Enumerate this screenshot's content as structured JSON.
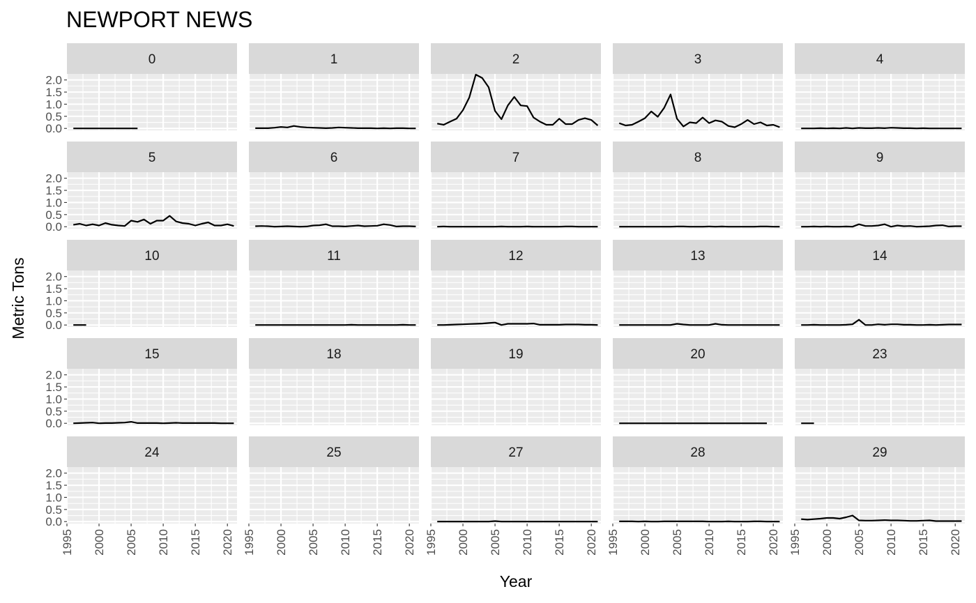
{
  "chart_data": {
    "type": "line",
    "title": "NEWPORT NEWS",
    "xlabel": "Year",
    "ylabel": "Metric Tons",
    "xlim": [
      1995,
      2021.5
    ],
    "ylim": [
      -0.08,
      2.25
    ],
    "x_ticks": [
      1995,
      2000,
      2005,
      2010,
      2015,
      2020
    ],
    "y_ticks": [
      0.0,
      0.5,
      1.0,
      1.5,
      2.0
    ],
    "y_tick_labels": [
      "0.0",
      "0.5",
      "1.0",
      "1.5",
      "2.0"
    ],
    "facet_columns": 5,
    "line_color": "#000000",
    "panel_background": "#ebebeb",
    "strip_background": "#d9d9d9",
    "grid": true,
    "panels": [
      {
        "label": "0",
        "x": [
          1996,
          1997,
          1998,
          1999,
          2000,
          2001,
          2002,
          2003,
          2004,
          2005,
          2006
        ],
        "y": [
          0,
          0,
          0,
          0,
          0,
          0,
          0,
          0,
          0,
          0,
          0
        ]
      },
      {
        "label": "1",
        "x": [
          1996,
          1997,
          1998,
          1999,
          2000,
          2001,
          2002,
          2003,
          2004,
          2005,
          2006,
          2007,
          2008,
          2009,
          2010,
          2011,
          2012,
          2013,
          2014,
          2015,
          2016,
          2017,
          2018,
          2019,
          2020,
          2021
        ],
        "y": [
          0.01,
          0.01,
          0.01,
          0.03,
          0.06,
          0.04,
          0.1,
          0.06,
          0.04,
          0.03,
          0.02,
          0.01,
          0.02,
          0.04,
          0.03,
          0.02,
          0.01,
          0.01,
          0.01,
          0.0,
          0.01,
          0.0,
          0.01,
          0.01,
          0.0,
          0.0
        ]
      },
      {
        "label": "2",
        "x": [
          1996,
          1997,
          1998,
          1999,
          2000,
          2001,
          2002,
          2003,
          2004,
          2005,
          2006,
          2007,
          2008,
          2009,
          2010,
          2011,
          2012,
          2013,
          2014,
          2015,
          2016,
          2017,
          2018,
          2019,
          2020,
          2021
        ],
        "y": [
          0.2,
          0.15,
          0.28,
          0.4,
          0.75,
          1.28,
          2.22,
          2.08,
          1.7,
          0.72,
          0.38,
          0.95,
          1.3,
          0.95,
          0.92,
          0.45,
          0.28,
          0.15,
          0.15,
          0.4,
          0.18,
          0.18,
          0.35,
          0.42,
          0.35,
          0.12
        ]
      },
      {
        "label": "3",
        "x": [
          1996,
          1997,
          1998,
          1999,
          2000,
          2001,
          2002,
          2003,
          2004,
          2005,
          2006,
          2007,
          2008,
          2009,
          2010,
          2011,
          2012,
          2013,
          2014,
          2015,
          2016,
          2017,
          2018,
          2019,
          2020,
          2021
        ],
        "y": [
          0.22,
          0.12,
          0.15,
          0.28,
          0.42,
          0.7,
          0.48,
          0.85,
          1.4,
          0.4,
          0.08,
          0.25,
          0.22,
          0.45,
          0.22,
          0.33,
          0.28,
          0.1,
          0.05,
          0.18,
          0.35,
          0.18,
          0.25,
          0.12,
          0.15,
          0.05
        ]
      },
      {
        "label": "4",
        "x": [
          1996,
          1997,
          1998,
          1999,
          2000,
          2001,
          2002,
          2003,
          2004,
          2005,
          2006,
          2007,
          2008,
          2009,
          2010,
          2011,
          2012,
          2013,
          2014,
          2015,
          2016,
          2017,
          2018,
          2019,
          2020,
          2021
        ],
        "y": [
          0.0,
          0.0,
          0.0,
          0.01,
          0.0,
          0.01,
          0.0,
          0.02,
          0.0,
          0.02,
          0.01,
          0.01,
          0.02,
          0.01,
          0.03,
          0.02,
          0.01,
          0.01,
          0.0,
          0.01,
          0.0,
          0.0,
          0.0,
          0.0,
          0.0,
          0.0
        ]
      },
      {
        "label": "5",
        "x": [
          1996,
          1997,
          1998,
          1999,
          2000,
          2001,
          2002,
          2003,
          2004,
          2005,
          2006,
          2007,
          2008,
          2009,
          2010,
          2011,
          2012,
          2013,
          2014,
          2015,
          2016,
          2017,
          2018,
          2019,
          2020,
          2021
        ],
        "y": [
          0.08,
          0.12,
          0.05,
          0.1,
          0.05,
          0.15,
          0.08,
          0.05,
          0.03,
          0.25,
          0.2,
          0.3,
          0.12,
          0.25,
          0.25,
          0.45,
          0.22,
          0.15,
          0.12,
          0.05,
          0.12,
          0.18,
          0.05,
          0.05,
          0.1,
          0.03
        ]
      },
      {
        "label": "6",
        "x": [
          1996,
          1997,
          1998,
          1999,
          2000,
          2001,
          2002,
          2003,
          2004,
          2005,
          2006,
          2007,
          2008,
          2009,
          2010,
          2011,
          2012,
          2013,
          2014,
          2015,
          2016,
          2017,
          2018,
          2019,
          2020,
          2021
        ],
        "y": [
          0.02,
          0.03,
          0.02,
          0.0,
          0.01,
          0.02,
          0.01,
          0.0,
          0.01,
          0.05,
          0.06,
          0.1,
          0.02,
          0.02,
          0.01,
          0.03,
          0.05,
          0.02,
          0.03,
          0.04,
          0.1,
          0.07,
          0.01,
          0.02,
          0.02,
          0.01
        ]
      },
      {
        "label": "7",
        "x": [
          1996,
          1997,
          1998,
          1999,
          2000,
          2001,
          2002,
          2003,
          2004,
          2005,
          2006,
          2007,
          2008,
          2009,
          2010,
          2011,
          2012,
          2013,
          2014,
          2015,
          2016,
          2017,
          2018,
          2019,
          2020,
          2021
        ],
        "y": [
          0.0,
          0.01,
          0.0,
          0.0,
          0.0,
          0.0,
          0.0,
          0.0,
          0.0,
          0.0,
          0.01,
          0.0,
          0.0,
          0.0,
          0.01,
          0.0,
          0.0,
          0.0,
          0.0,
          0.0,
          0.01,
          0.01,
          0.0,
          0.0,
          0.0,
          0.0
        ]
      },
      {
        "label": "8",
        "x": [
          1996,
          1997,
          1998,
          1999,
          2000,
          2001,
          2002,
          2003,
          2004,
          2005,
          2006,
          2007,
          2008,
          2009,
          2010,
          2011,
          2012,
          2013,
          2014,
          2015,
          2016,
          2017,
          2018,
          2019,
          2020,
          2021
        ],
        "y": [
          0.0,
          0.0,
          0.0,
          0.0,
          0.0,
          0.0,
          0.0,
          0.0,
          0.0,
          0.01,
          0.01,
          0.0,
          0.0,
          0.0,
          0.01,
          0.0,
          0.01,
          0.0,
          0.0,
          0.0,
          0.0,
          0.0,
          0.01,
          0.01,
          0.0,
          0.0
        ]
      },
      {
        "label": "9",
        "x": [
          1996,
          1997,
          1998,
          1999,
          2000,
          2001,
          2002,
          2003,
          2004,
          2005,
          2006,
          2007,
          2008,
          2009,
          2010,
          2011,
          2012,
          2013,
          2014,
          2015,
          2016,
          2017,
          2018,
          2019,
          2020,
          2021
        ],
        "y": [
          0.0,
          0.0,
          0.01,
          0.0,
          0.01,
          0.0,
          0.0,
          0.01,
          0.0,
          0.1,
          0.03,
          0.03,
          0.05,
          0.1,
          0.0,
          0.05,
          0.02,
          0.03,
          0.0,
          0.01,
          0.02,
          0.05,
          0.06,
          0.01,
          0.02,
          0.02
        ]
      },
      {
        "label": "10",
        "x": [
          1996,
          1997,
          1998
        ],
        "y": [
          0,
          0,
          0
        ]
      },
      {
        "label": "11",
        "x": [
          1996,
          1997,
          1998,
          1999,
          2000,
          2001,
          2002,
          2003,
          2004,
          2005,
          2006,
          2007,
          2008,
          2009,
          2010,
          2011,
          2012,
          2013,
          2014,
          2015,
          2016,
          2017,
          2018,
          2019,
          2020,
          2021
        ],
        "y": [
          0.0,
          0.0,
          0.0,
          0.0,
          0.0,
          0.0,
          0.0,
          0.0,
          0.0,
          0.0,
          0.0,
          0.0,
          0.0,
          0.0,
          0.0,
          0.01,
          0.0,
          0.0,
          0.0,
          0.0,
          0.0,
          0.0,
          0.0,
          0.01,
          0.0,
          0.0
        ]
      },
      {
        "label": "12",
        "x": [
          1996,
          1997,
          1998,
          1999,
          2000,
          2001,
          2002,
          2003,
          2004,
          2005,
          2006,
          2007,
          2008,
          2009,
          2010,
          2011,
          2012,
          2013,
          2014,
          2015,
          2016,
          2017,
          2018,
          2019,
          2020,
          2021
        ],
        "y": [
          0.0,
          0.0,
          0.01,
          0.02,
          0.03,
          0.04,
          0.05,
          0.06,
          0.08,
          0.1,
          0.0,
          0.05,
          0.05,
          0.05,
          0.05,
          0.06,
          0.01,
          0.01,
          0.01,
          0.01,
          0.02,
          0.02,
          0.02,
          0.01,
          0.01,
          0.0
        ]
      },
      {
        "label": "13",
        "x": [
          1996,
          1997,
          1998,
          1999,
          2000,
          2001,
          2002,
          2003,
          2004,
          2005,
          2006,
          2007,
          2008,
          2009,
          2010,
          2011,
          2012,
          2013,
          2014,
          2015,
          2016,
          2017,
          2018,
          2019,
          2020,
          2021
        ],
        "y": [
          0.0,
          0.0,
          0.0,
          0.0,
          0.0,
          0.0,
          0.0,
          0.0,
          0.0,
          0.05,
          0.02,
          0.0,
          0.0,
          0.0,
          0.0,
          0.05,
          0.01,
          0.0,
          0.0,
          0.0,
          0.0,
          0.0,
          0.0,
          0.0,
          0.0,
          0.0
        ]
      },
      {
        "label": "14",
        "x": [
          1996,
          1997,
          1998,
          1999,
          2000,
          2001,
          2002,
          2003,
          2004,
          2005,
          2006,
          2007,
          2008,
          2009,
          2010,
          2011,
          2012,
          2013,
          2014,
          2015,
          2016,
          2017,
          2018,
          2019,
          2020,
          2021
        ],
        "y": [
          0.0,
          0.0,
          0.01,
          0.0,
          0.0,
          0.0,
          0.0,
          0.01,
          0.03,
          0.22,
          0.0,
          0.0,
          0.03,
          0.01,
          0.03,
          0.03,
          0.01,
          0.01,
          0.0,
          0.0,
          0.01,
          0.0,
          0.01,
          0.02,
          0.02,
          0.02
        ]
      },
      {
        "label": "15",
        "x": [
          1996,
          1997,
          1998,
          1999,
          2000,
          2001,
          2002,
          2003,
          2004,
          2005,
          2006,
          2007,
          2008,
          2009,
          2010,
          2011,
          2012,
          2013,
          2014,
          2015,
          2016,
          2017,
          2018,
          2019,
          2020,
          2021
        ],
        "y": [
          0.0,
          0.01,
          0.02,
          0.03,
          0.0,
          0.01,
          0.01,
          0.02,
          0.03,
          0.06,
          0.01,
          0.01,
          0.01,
          0.01,
          0.0,
          0.01,
          0.02,
          0.01,
          0.01,
          0.01,
          0.01,
          0.01,
          0.01,
          0.0,
          0.0,
          0.0
        ]
      },
      {
        "label": "18",
        "x": [],
        "y": []
      },
      {
        "label": "19",
        "x": [],
        "y": []
      },
      {
        "label": "20",
        "x": [
          1996,
          1997,
          1998,
          1999,
          2000,
          2001,
          2002,
          2003,
          2004,
          2005,
          2006,
          2007,
          2008,
          2009,
          2010,
          2011,
          2012,
          2013,
          2014,
          2015,
          2016,
          2017,
          2018,
          2019
        ],
        "y": [
          0,
          0,
          0,
          0,
          0,
          0,
          0,
          0,
          0,
          0,
          0,
          0,
          0,
          0,
          0,
          0,
          0,
          0,
          0,
          0,
          0,
          0,
          0,
          0
        ]
      },
      {
        "label": "23",
        "x": [
          1996,
          1997,
          1998
        ],
        "y": [
          0,
          0,
          0
        ]
      },
      {
        "label": "24",
        "x": [],
        "y": []
      },
      {
        "label": "25",
        "x": [],
        "y": []
      },
      {
        "label": "27",
        "x": [
          1996,
          1997,
          1998,
          1999,
          2000,
          2001,
          2002,
          2003,
          2004,
          2005,
          2006,
          2007,
          2008,
          2009,
          2010,
          2011,
          2012,
          2013,
          2014,
          2015,
          2016,
          2017,
          2018,
          2019,
          2020,
          2021
        ],
        "y": [
          0.0,
          0.0,
          0.0,
          0.0,
          0.0,
          0.0,
          0.0,
          0.0,
          0.0,
          0.02,
          0.0,
          0.0,
          0.0,
          0.0,
          0.0,
          0.0,
          0.0,
          0.0,
          0.0,
          0.0,
          0.0,
          0.0,
          0.0,
          0.0,
          0.0,
          0.0
        ]
      },
      {
        "label": "28",
        "x": [
          1996,
          1997,
          1998,
          1999,
          2000,
          2001,
          2002,
          2003,
          2004,
          2005,
          2006,
          2007,
          2008,
          2009,
          2010,
          2011,
          2012,
          2013,
          2014,
          2015,
          2016,
          2017,
          2018,
          2019,
          2020,
          2021
        ],
        "y": [
          0.01,
          0.01,
          0.01,
          0.0,
          0.01,
          0.0,
          0.0,
          0.01,
          0.01,
          0.01,
          0.01,
          0.01,
          0.01,
          0.01,
          0.0,
          0.0,
          0.0,
          0.01,
          0.0,
          0.0,
          0.0,
          0.01,
          0.01,
          0.0,
          0.0,
          0.0
        ]
      },
      {
        "label": "29",
        "x": [
          1996,
          1997,
          1998,
          1999,
          2000,
          2001,
          2002,
          2003,
          2004,
          2005,
          2006,
          2007,
          2008,
          2009,
          2010,
          2011,
          2012,
          2013,
          2014,
          2015,
          2016,
          2017,
          2018,
          2019,
          2020,
          2021
        ],
        "y": [
          0.1,
          0.08,
          0.1,
          0.12,
          0.15,
          0.15,
          0.12,
          0.18,
          0.25,
          0.05,
          0.04,
          0.04,
          0.05,
          0.06,
          0.05,
          0.05,
          0.04,
          0.03,
          0.03,
          0.04,
          0.05,
          0.02,
          0.02,
          0.02,
          0.02,
          0.02
        ]
      }
    ]
  }
}
